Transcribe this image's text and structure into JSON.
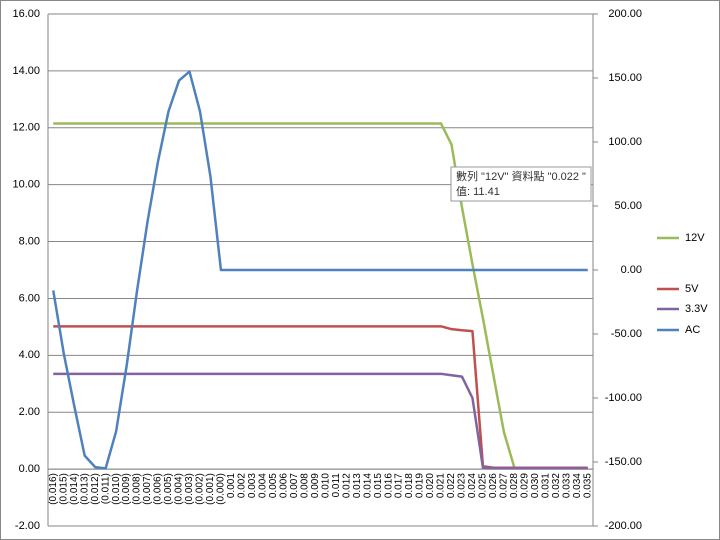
{
  "chart_data": {
    "type": "line",
    "categories": [
      "(0.016)",
      "(0.015)",
      "(0.014)",
      "(0.013)",
      "(0.012)",
      "(0.011)",
      "(0.010)",
      "(0.009)",
      "(0.008)",
      "(0.007)",
      "(0.006)",
      "(0.005)",
      "(0.004)",
      "(0.003)",
      "(0.002)",
      "(0.001)",
      "(0.000)",
      "0.001",
      "0.002",
      "0.003",
      "0.004",
      "0.005",
      "0.006",
      "0.007",
      "0.008",
      "0.009",
      "0.010",
      "0.011",
      "0.012",
      "0.013",
      "0.014",
      "0.015",
      "0.016",
      "0.017",
      "0.018",
      "0.019",
      "0.020",
      "0.021",
      "0.022",
      "0.023",
      "0.024",
      "0.025",
      "0.026",
      "0.027",
      "0.028",
      "0.029",
      "0.030",
      "0.031",
      "0.032",
      "0.033",
      "0.034",
      "0.035"
    ],
    "series": [
      {
        "name": "12V",
        "color": "#9bbb59",
        "values": [
          12.15,
          12.15,
          12.15,
          12.15,
          12.15,
          12.15,
          12.15,
          12.15,
          12.15,
          12.15,
          12.15,
          12.15,
          12.15,
          12.15,
          12.15,
          12.15,
          12.15,
          12.15,
          12.15,
          12.15,
          12.15,
          12.15,
          12.15,
          12.15,
          12.15,
          12.15,
          12.15,
          12.15,
          12.15,
          12.15,
          12.15,
          12.15,
          12.15,
          12.15,
          12.15,
          12.15,
          12.15,
          12.15,
          11.41,
          9.2,
          7.2,
          5.3,
          3.3,
          1.3,
          0.05,
          0.03,
          0.03,
          0.03,
          0.03,
          0.03,
          0.03,
          0.03
        ]
      },
      {
        "name": "5V",
        "color": "#c0504d",
        "values": [
          5.02,
          5.02,
          5.02,
          5.02,
          5.02,
          5.02,
          5.02,
          5.02,
          5.02,
          5.02,
          5.02,
          5.02,
          5.02,
          5.02,
          5.02,
          5.02,
          5.02,
          5.02,
          5.02,
          5.02,
          5.02,
          5.02,
          5.02,
          5.02,
          5.02,
          5.02,
          5.02,
          5.02,
          5.02,
          5.02,
          5.02,
          5.02,
          5.02,
          5.02,
          5.02,
          5.02,
          5.02,
          5.02,
          4.92,
          4.88,
          4.85,
          0.1,
          0.05,
          0.05,
          0.05,
          0.05,
          0.05,
          0.05,
          0.05,
          0.05,
          0.05,
          0.05
        ]
      },
      {
        "name": "3.3V",
        "color": "#8064a2",
        "values": [
          3.35,
          3.35,
          3.35,
          3.35,
          3.35,
          3.35,
          3.35,
          3.35,
          3.35,
          3.35,
          3.35,
          3.35,
          3.35,
          3.35,
          3.35,
          3.35,
          3.35,
          3.35,
          3.35,
          3.35,
          3.35,
          3.35,
          3.35,
          3.35,
          3.35,
          3.35,
          3.35,
          3.35,
          3.35,
          3.35,
          3.35,
          3.35,
          3.35,
          3.35,
          3.35,
          3.35,
          3.35,
          3.35,
          3.3,
          3.25,
          2.5,
          0.05,
          0.03,
          0.03,
          0.03,
          0.03,
          0.03,
          0.03,
          0.03,
          0.03,
          0.03,
          0.03
        ]
      },
      {
        "name": "AC",
        "color": "#4f81bd",
        "axis": "y2",
        "values": [
          -16,
          -65,
          -106,
          -145,
          -154,
          -155,
          -126,
          -75,
          -16,
          38,
          85,
          124,
          148,
          155,
          124,
          73,
          0,
          0,
          0,
          0,
          0,
          0,
          0,
          0,
          0,
          0,
          0,
          0,
          0,
          0,
          0,
          0,
          0,
          0,
          0,
          0,
          0,
          0,
          0,
          0,
          0,
          0,
          0,
          0,
          0,
          0,
          0,
          0,
          0,
          0,
          0,
          0
        ]
      }
    ],
    "ylim": [
      -2,
      16
    ],
    "yticks": [
      {
        "value": -2,
        "label": "-2.00"
      },
      {
        "value": 0,
        "label": "0.00"
      },
      {
        "value": 2,
        "label": "2.00"
      },
      {
        "value": 4,
        "label": "4.00"
      },
      {
        "value": 6,
        "label": "6.00"
      },
      {
        "value": 8,
        "label": "8.00"
      },
      {
        "value": 10,
        "label": "10.00"
      },
      {
        "value": 12,
        "label": "12.00"
      },
      {
        "value": 14,
        "label": "14.00"
      },
      {
        "value": 16,
        "label": "16.00"
      }
    ],
    "y2lim": [
      -200,
      200
    ],
    "y2ticks": [
      {
        "value": -200,
        "label": "-200.00"
      },
      {
        "value": -150,
        "label": "-150.00"
      },
      {
        "value": -100,
        "label": "-100.00"
      },
      {
        "value": -50,
        "label": "-50.00"
      },
      {
        "value": 0,
        "label": "0.00"
      },
      {
        "value": 50,
        "label": "50.00"
      },
      {
        "value": 100,
        "label": "100.00"
      },
      {
        "value": 150,
        "label": "150.00"
      },
      {
        "value": 200,
        "label": "200.00"
      }
    ],
    "grid": true,
    "legend": "right",
    "tooltip": [
      "數列 \"12V\" 資料點 \"0.022 \"",
      "值: 11.41"
    ]
  }
}
